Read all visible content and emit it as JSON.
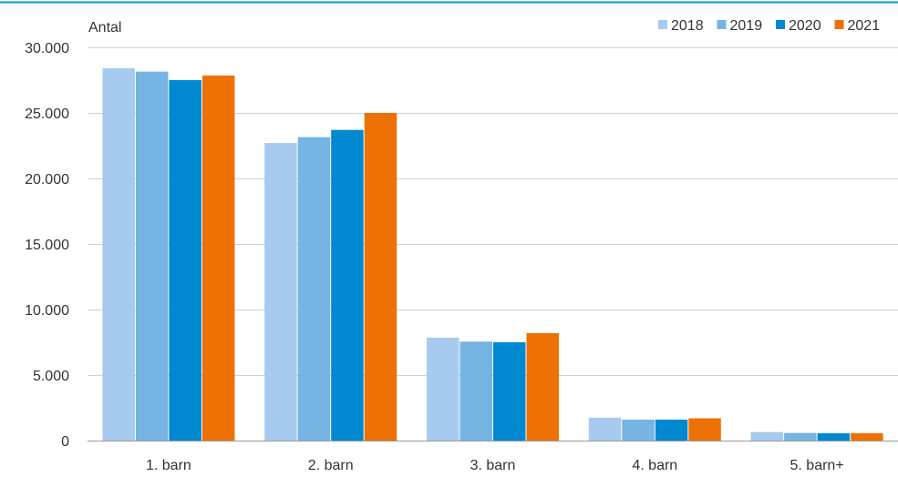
{
  "chart_data": {
    "type": "bar",
    "title": "",
    "xlabel": "",
    "ylabel": "Antal",
    "ylim": [
      0,
      30000
    ],
    "yticks": [
      0,
      5000,
      10000,
      15000,
      20000,
      25000,
      30000
    ],
    "ytick_labels": [
      "0",
      "5.000",
      "10.000",
      "15.000",
      "20.000",
      "25.000",
      "30.000"
    ],
    "categories": [
      "1. barn",
      "2. barn",
      "3. barn",
      "4. barn",
      "5. barn+"
    ],
    "series": [
      {
        "name": "2018",
        "color": "#a6cbee",
        "values": [
          28400,
          22700,
          7850,
          1750,
          650
        ]
      },
      {
        "name": "2019",
        "color": "#75b4e3",
        "values": [
          28150,
          23150,
          7550,
          1600,
          580
        ]
      },
      {
        "name": "2020",
        "color": "#0088d1",
        "values": [
          27500,
          23700,
          7500,
          1600,
          560
        ]
      },
      {
        "name": "2021",
        "color": "#ed7104",
        "values": [
          27850,
          25000,
          8200,
          1700,
          570
        ]
      }
    ],
    "grid": true,
    "legend_position": "top-right",
    "top_rule_color": "#0099cc",
    "gridline_color": "#d0d0d0"
  }
}
